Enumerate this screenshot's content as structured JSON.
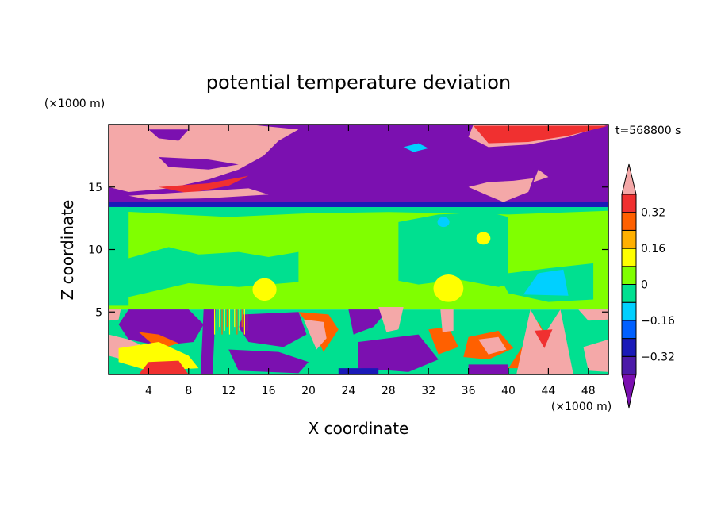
{
  "chart_data": {
    "type": "heatmap",
    "title": "potential temperature deviation",
    "xlabel": "X coordinate",
    "ylabel": "Z coordinate",
    "x_unit": "(×1000 m)",
    "y_unit": "(×1000 m)",
    "time_label": "t=568800 s",
    "xlim": [
      0,
      50
    ],
    "ylim": [
      0,
      20
    ],
    "x_ticks": [
      4,
      8,
      12,
      16,
      20,
      24,
      28,
      32,
      36,
      40,
      44,
      48
    ],
    "y_ticks": [
      5,
      10,
      15
    ],
    "x_tick_labels": [
      "4",
      "8",
      "12",
      "16",
      "20",
      "24",
      "28",
      "32",
      "36",
      "40",
      "44",
      "48"
    ],
    "y_tick_labels": [
      "5",
      "10",
      "15"
    ],
    "colorbar": {
      "levels": [
        -0.4,
        -0.32,
        -0.24,
        -0.16,
        -0.08,
        0,
        0.08,
        0.16,
        0.24,
        0.32,
        0.4
      ],
      "tick_values": [
        -0.32,
        -0.16,
        0,
        0.16,
        0.32
      ],
      "tick_labels": [
        "−0.32",
        "−0.16",
        "0",
        "0.16",
        "0.32"
      ],
      "colors": [
        "#7b10b0",
        "#4b1aa8",
        "#1a1ab8",
        "#0060ff",
        "#00d0ff",
        "#00e090",
        "#80ff00",
        "#ffff00",
        "#ffb000",
        "#ff6000",
        "#f03030",
        "#f4a8a8"
      ],
      "extend": "both"
    },
    "regions": [
      {
        "x": [
          0,
          50
        ],
        "z": [
          13.8,
          20
        ],
        "level": "below -0.4"
      },
      {
        "x": [
          0,
          50
        ],
        "z": [
          13.4,
          13.8
        ],
        "level": "-0.32 to -0.24"
      },
      {
        "x": [
          0,
          50
        ],
        "z": [
          5.2,
          13.4
        ],
        "level": "0 to 0.08"
      },
      {
        "x": [
          0,
          50
        ],
        "z": [
          0,
          5.2
        ],
        "level": "mixed -0.4 to 0.4+"
      }
    ]
  }
}
